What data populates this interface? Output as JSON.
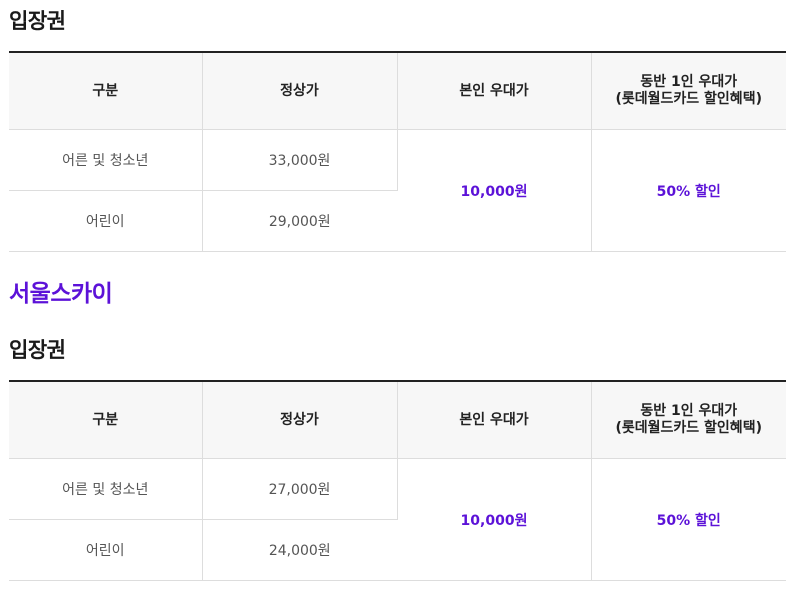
{
  "accent_color": "#5c12d8",
  "sections": [
    {
      "subheading": "입장권",
      "table": {
        "headers": [
          "구분",
          "정상가",
          "본인 우대가",
          "동반 1인 우대가",
          "(롯데월드카드 할인혜택)"
        ],
        "rows": [
          {
            "category": "어른 및 청소년",
            "price": "33,000원"
          },
          {
            "category": "어린이",
            "price": "29,000원"
          }
        ],
        "self_discount": "10,000원",
        "companion_discount": "50% 할인"
      }
    },
    {
      "heading": "서울스카이",
      "subheading": "입장권",
      "table": {
        "headers": [
          "구분",
          "정상가",
          "본인 우대가",
          "동반 1인 우대가",
          "(롯데월드카드 할인혜택)"
        ],
        "rows": [
          {
            "category": "어른 및 청소년",
            "price": "27,000원"
          },
          {
            "category": "어린이",
            "price": "24,000원"
          }
        ],
        "self_discount": "10,000원",
        "companion_discount": "50% 할인"
      }
    }
  ]
}
